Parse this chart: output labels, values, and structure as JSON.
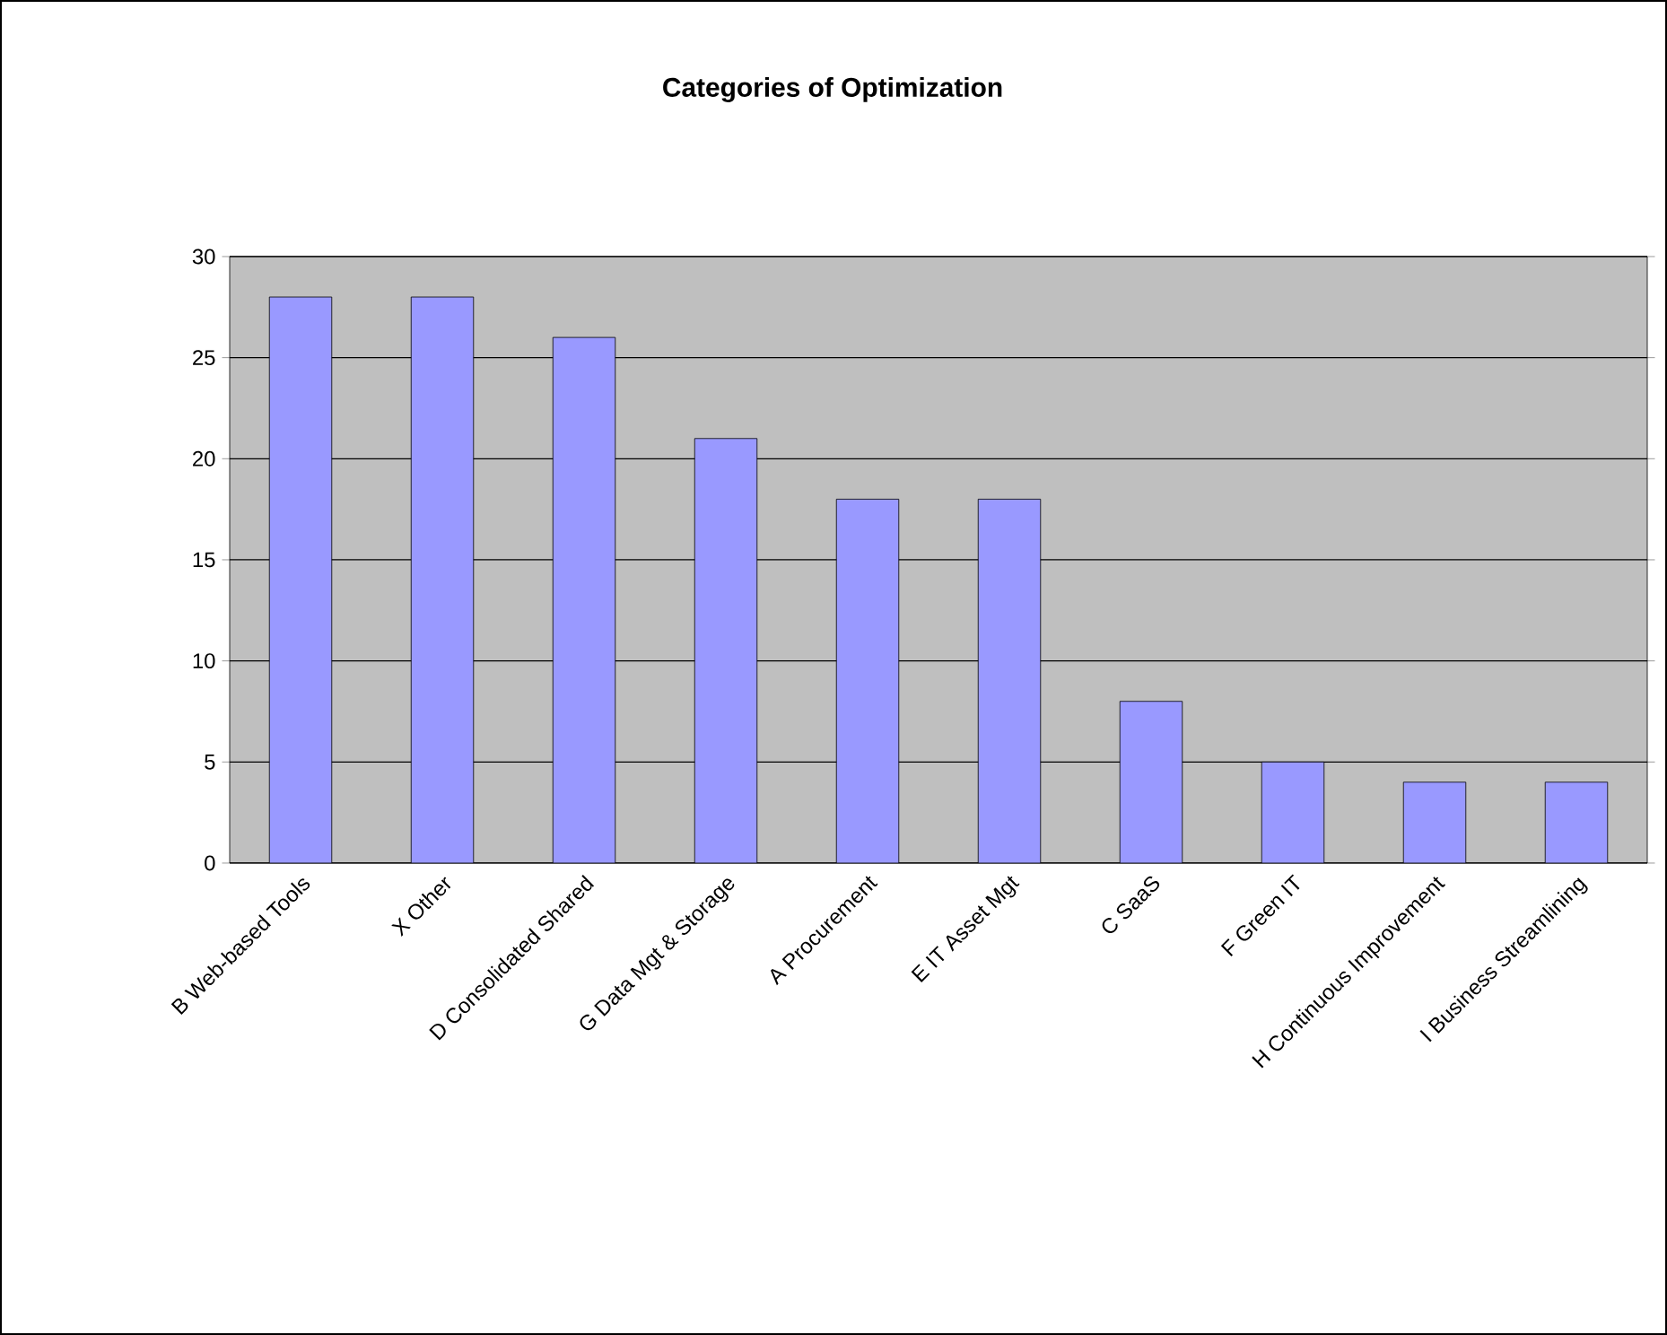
{
  "chart_data": {
    "type": "bar",
    "title": "Categories of Optimization",
    "categories": [
      "B Web-based Tools",
      "X Other",
      "D Consolidated Shared",
      "G Data Mgt & Storage",
      "A Procurement",
      "E IT Asset Mgt",
      "C SaaS",
      "F Green IT",
      "H Continuous Improvement",
      "I Business Streamlining"
    ],
    "values": [
      28,
      28,
      26,
      21,
      18,
      18,
      8,
      5,
      4,
      4
    ],
    "color": "#9999ff",
    "ylim": [
      0,
      30
    ],
    "yticks": [
      0,
      5,
      10,
      15,
      20,
      25,
      30
    ],
    "grid": "y"
  }
}
